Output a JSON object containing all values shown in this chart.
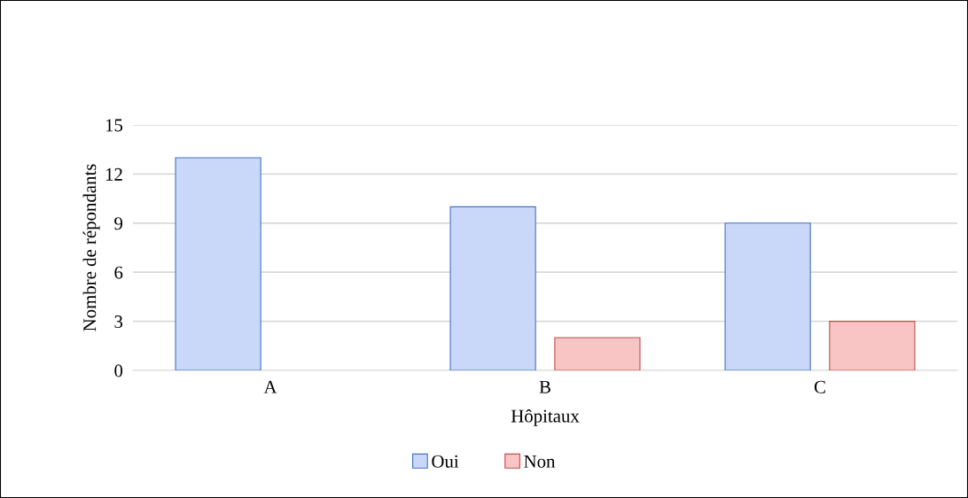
{
  "chart_data": {
    "type": "bar",
    "categories": [
      "A",
      "B",
      "C"
    ],
    "series": [
      {
        "name": "Oui",
        "color": "#c9d8f8",
        "values": [
          13,
          10,
          9
        ]
      },
      {
        "name": "Non",
        "color": "#f8c4c4",
        "values": [
          null,
          2,
          3
        ]
      }
    ],
    "xlabel": "Hôpitaux",
    "ylabel": "Nombre de répondants",
    "ylim": [
      0,
      15
    ],
    "yticks": [
      0,
      3,
      6,
      9,
      12,
      15
    ],
    "grid": "y",
    "legend": "bottom"
  }
}
